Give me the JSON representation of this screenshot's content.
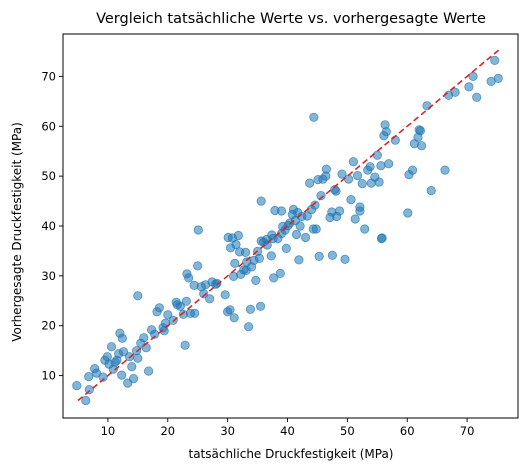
{
  "chart_data": {
    "type": "scatter",
    "title": "Vergleich tatsächliche Werte vs. vorhergesagte Werte",
    "xlabel": "tatsächliche Druckfestigkeit (MPa)",
    "ylabel": "Vorhergesagte Druckfestigkeit (MPa)",
    "xlim": [
      2.5,
      78.5
    ],
    "ylim": [
      1.5,
      78.5
    ],
    "xticks": [
      10,
      20,
      30,
      40,
      50,
      60,
      70
    ],
    "yticks": [
      10,
      20,
      30,
      40,
      50,
      60,
      70
    ],
    "grid": false,
    "colors": {
      "points": "#1f77b4",
      "reference_line": "#d62728"
    },
    "reference_line": {
      "style": "dashed",
      "from": [
        5,
        5
      ],
      "to": [
        75.5,
        75.5
      ]
    },
    "series": [
      {
        "points": [
          [
            4.8,
            8.0
          ],
          [
            6.3,
            5.0
          ],
          [
            6.9,
            7.2
          ],
          [
            6.8,
            9.8
          ],
          [
            7.8,
            11.4
          ],
          [
            8.1,
            10.5
          ],
          [
            9.2,
            9.7
          ],
          [
            9.9,
            13.8
          ],
          [
            10.2,
            12.3
          ],
          [
            10.6,
            15.8
          ],
          [
            10.9,
            11.3
          ],
          [
            11.2,
            12.7
          ],
          [
            11.5,
            13.1
          ],
          [
            11.8,
            14.4
          ],
          [
            12.0,
            18.5
          ],
          [
            12.4,
            17.5
          ],
          [
            12.6,
            14.8
          ],
          [
            12.3,
            10.1
          ],
          [
            13.3,
            8.5
          ],
          [
            13.6,
            13.8
          ],
          [
            14.0,
            11.8
          ],
          [
            14.3,
            9.4
          ],
          [
            14.8,
            15.0
          ],
          [
            15.0,
            13.5
          ],
          [
            15.0,
            26.0
          ],
          [
            15.5,
            16.5
          ],
          [
            16.4,
            15.6
          ],
          [
            16.8,
            10.9
          ],
          [
            17.3,
            19.2
          ],
          [
            17.8,
            18.3
          ],
          [
            18.2,
            22.8
          ],
          [
            18.6,
            23.6
          ],
          [
            19.2,
            19.6
          ],
          [
            19.6,
            20.5
          ],
          [
            20.0,
            22.2
          ],
          [
            20.9,
            21.1
          ],
          [
            21.4,
            24.7
          ],
          [
            21.6,
            24.2
          ],
          [
            22.1,
            23.9
          ],
          [
            22.6,
            22.3
          ],
          [
            22.9,
            16.1
          ],
          [
            23.1,
            24.9
          ],
          [
            23.2,
            30.4
          ],
          [
            23.5,
            29.6
          ],
          [
            23.8,
            22.5
          ],
          [
            24.4,
            28.1
          ],
          [
            24.5,
            22.5
          ],
          [
            25.1,
            39.2
          ],
          [
            25.0,
            32.0
          ],
          [
            25.6,
            27.8
          ],
          [
            26.3,
            28.2
          ],
          [
            27.0,
            25.4
          ],
          [
            27.4,
            28.8
          ],
          [
            28.0,
            28.3
          ],
          [
            29.6,
            26.2
          ],
          [
            30.0,
            22.8
          ],
          [
            30.1,
            37.7
          ],
          [
            30.4,
            23.2
          ],
          [
            30.5,
            35.6
          ],
          [
            30.8,
            37.6
          ],
          [
            31.0,
            29.9
          ],
          [
            31.1,
            21.6
          ],
          [
            31.2,
            32.5
          ],
          [
            31.4,
            36.3
          ],
          [
            31.8,
            38.1
          ],
          [
            32.0,
            34.8
          ],
          [
            32.2,
            30.3
          ],
          [
            32.7,
            31.2
          ],
          [
            33.0,
            34.7
          ],
          [
            33.1,
            31.1
          ],
          [
            33.5,
            19.8
          ],
          [
            33.8,
            23.3
          ],
          [
            34.0,
            31.8
          ],
          [
            34.4,
            33.1
          ],
          [
            34.7,
            29.1
          ],
          [
            35.0,
            34.9
          ],
          [
            35.3,
            33.5
          ],
          [
            35.5,
            23.9
          ],
          [
            35.6,
            37.0
          ],
          [
            35.6,
            45.0
          ],
          [
            36.0,
            36.8
          ],
          [
            36.6,
            36.2
          ],
          [
            37.3,
            34.0
          ],
          [
            37.4,
            38.2
          ],
          [
            37.6,
            37.5
          ],
          [
            37.7,
            29.6
          ],
          [
            37.9,
            43.1
          ],
          [
            38.4,
            37.5
          ],
          [
            38.8,
            30.5
          ],
          [
            39.0,
            43.0
          ],
          [
            39.2,
            39.9
          ],
          [
            39.6,
            39.2
          ],
          [
            39.8,
            35.5
          ],
          [
            40.1,
            40.1
          ],
          [
            40.4,
            40.6
          ],
          [
            40.8,
            42.3
          ],
          [
            41.0,
            43.3
          ],
          [
            41.3,
            41.1
          ],
          [
            41.5,
            38.3
          ],
          [
            41.7,
            42.7
          ],
          [
            41.9,
            33.2
          ],
          [
            42.1,
            40.0
          ],
          [
            42.4,
            41.9
          ],
          [
            43.0,
            37.7
          ],
          [
            43.3,
            42.0
          ],
          [
            43.7,
            48.6
          ],
          [
            44.0,
            43.3
          ],
          [
            44.3,
            39.4
          ],
          [
            44.4,
            61.8
          ],
          [
            44.6,
            44.2
          ],
          [
            44.8,
            39.4
          ],
          [
            45.1,
            49.3
          ],
          [
            45.3,
            33.9
          ],
          [
            45.6,
            46.1
          ],
          [
            45.9,
            49.4
          ],
          [
            46.4,
            50.0
          ],
          [
            47.1,
            41.7
          ],
          [
            47.4,
            42.8
          ],
          [
            47.5,
            34.1
          ],
          [
            47.9,
            47.3
          ],
          [
            48.2,
            41.9
          ],
          [
            48.7,
            43.0
          ],
          [
            49.1,
            50.4
          ],
          [
            49.6,
            33.3
          ],
          [
            50.2,
            49.4
          ],
          [
            50.6,
            45.3
          ],
          [
            51.0,
            52.9
          ],
          [
            51.3,
            41.4
          ],
          [
            51.7,
            50.1
          ],
          [
            52.1,
            43.8
          ],
          [
            52.5,
            48.5
          ],
          [
            52.9,
            39.4
          ],
          [
            53.4,
            51.2
          ],
          [
            54.0,
            48.6
          ],
          [
            54.6,
            49.8
          ],
          [
            55.0,
            54.2
          ],
          [
            55.6,
            52.1
          ],
          [
            55.7,
            37.5
          ],
          [
            55.8,
            37.6
          ],
          [
            56.1,
            58.1
          ],
          [
            56.3,
            60.3
          ],
          [
            56.5,
            58.9
          ],
          [
            56.9,
            52.5
          ],
          [
            60.1,
            42.6
          ],
          [
            60.3,
            50.3
          ],
          [
            60.9,
            51.2
          ],
          [
            61.2,
            56.5
          ],
          [
            61.8,
            57.8
          ],
          [
            62.0,
            59.3
          ],
          [
            62.2,
            59.1
          ],
          [
            62.4,
            56.1
          ],
          [
            63.3,
            64.1
          ],
          [
            64.0,
            47.1
          ],
          [
            66.3,
            51.2
          ],
          [
            66.9,
            66.2
          ],
          [
            70.3,
            67.9
          ],
          [
            71.0,
            70.0
          ],
          [
            71.6,
            65.8
          ],
          [
            74.0,
            69.0
          ],
          [
            74.6,
            73.2
          ],
          [
            75.2,
            69.6
          ],
          [
            52.1,
            43.0
          ],
          [
            48.1,
            47.0
          ],
          [
            36.5,
            37.3
          ],
          [
            28.2,
            28.5
          ],
          [
            19.4,
            19.0
          ],
          [
            9.5,
            13.1
          ],
          [
            46.5,
            51.4
          ],
          [
            58.0,
            57.2
          ],
          [
            26.0,
            26.4
          ],
          [
            16.0,
            17.6
          ],
          [
            39.0,
            38.5
          ],
          [
            33.2,
            32.8
          ],
          [
            55.3,
            48.8
          ],
          [
            68.0,
            66.8
          ],
          [
            53.8,
            51.9
          ]
        ]
      }
    ]
  }
}
